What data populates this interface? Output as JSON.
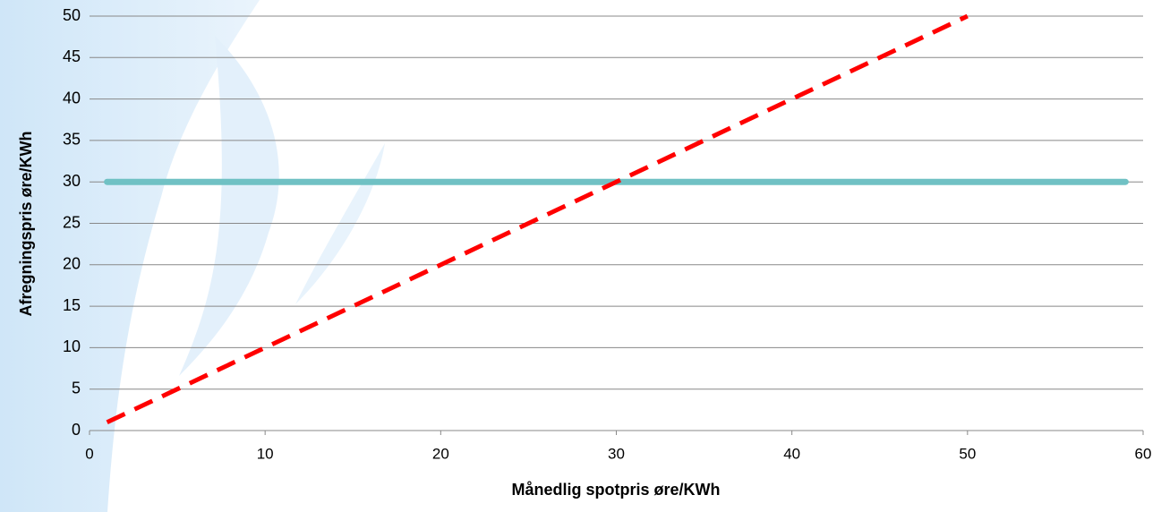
{
  "chart_data": {
    "type": "line",
    "x_label": "Månedlig spotpris øre/KWh",
    "y_label": "Afregningspris øre/KWh",
    "series": [
      {
        "color": "#70c1c4",
        "x": [
          1,
          59
        ],
        "values": [
          30,
          30
        ],
        "dashed": false
      },
      {
        "color": "#ff0000",
        "x": [
          1,
          50
        ],
        "values": [
          1,
          50
        ],
        "dashed": true
      }
    ],
    "xlim": [
      0,
      60
    ],
    "xticks": [
      0,
      10,
      20,
      30,
      40,
      50,
      60
    ],
    "ylim": [
      0,
      50
    ],
    "yticks": [
      0,
      5,
      10,
      15,
      20,
      25,
      30,
      35,
      40,
      45,
      50
    ],
    "grid": true
  }
}
